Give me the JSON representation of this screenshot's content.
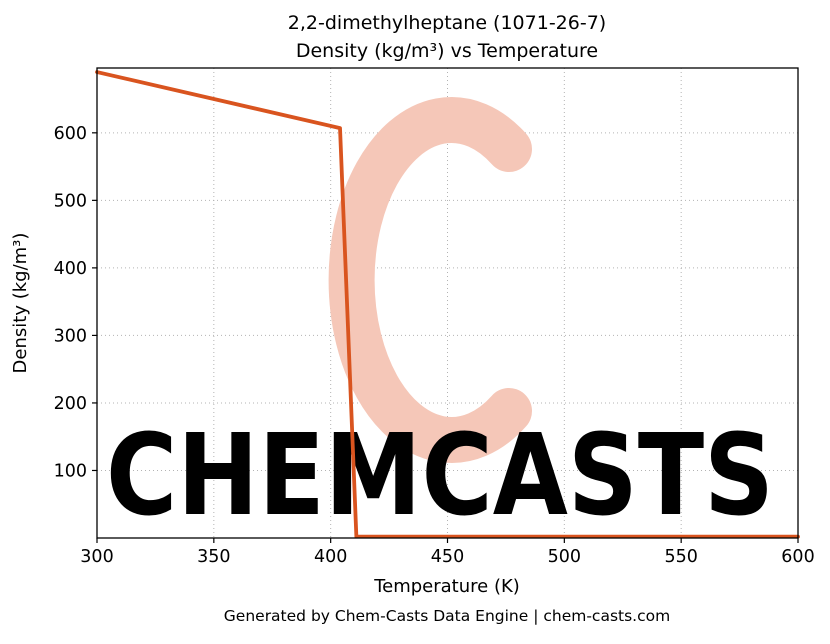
{
  "header": {
    "title_line1": "2,2-dimethylheptane (1071-26-7)",
    "title_line2": "Density (kg/m³) vs Temperature"
  },
  "footer": {
    "text": "Generated by Chem-Casts Data Engine | chem-casts.com"
  },
  "watermark": {
    "text": "CHEMCASTS",
    "color": "#f5c7b8"
  },
  "chart_data": {
    "type": "line",
    "title": "2,2-dimethylheptane (1071-26-7) Density (kg/m³) vs Temperature",
    "xlabel": "Temperature (K)",
    "ylabel": "Density (kg/m³)",
    "xlim": [
      300,
      600
    ],
    "ylim": [
      0,
      696
    ],
    "xticks": [
      300,
      350,
      400,
      450,
      500,
      550,
      600
    ],
    "yticks": [
      100,
      200,
      300,
      400,
      500,
      600
    ],
    "grid": true,
    "legend": false,
    "line_color": "#d9541f",
    "grid_color": "#b3b3b3",
    "series": [
      {
        "name": "density",
        "x": [
          300,
          404,
          411,
          600
        ],
        "y": [
          690,
          607,
          2,
          2
        ]
      }
    ]
  }
}
